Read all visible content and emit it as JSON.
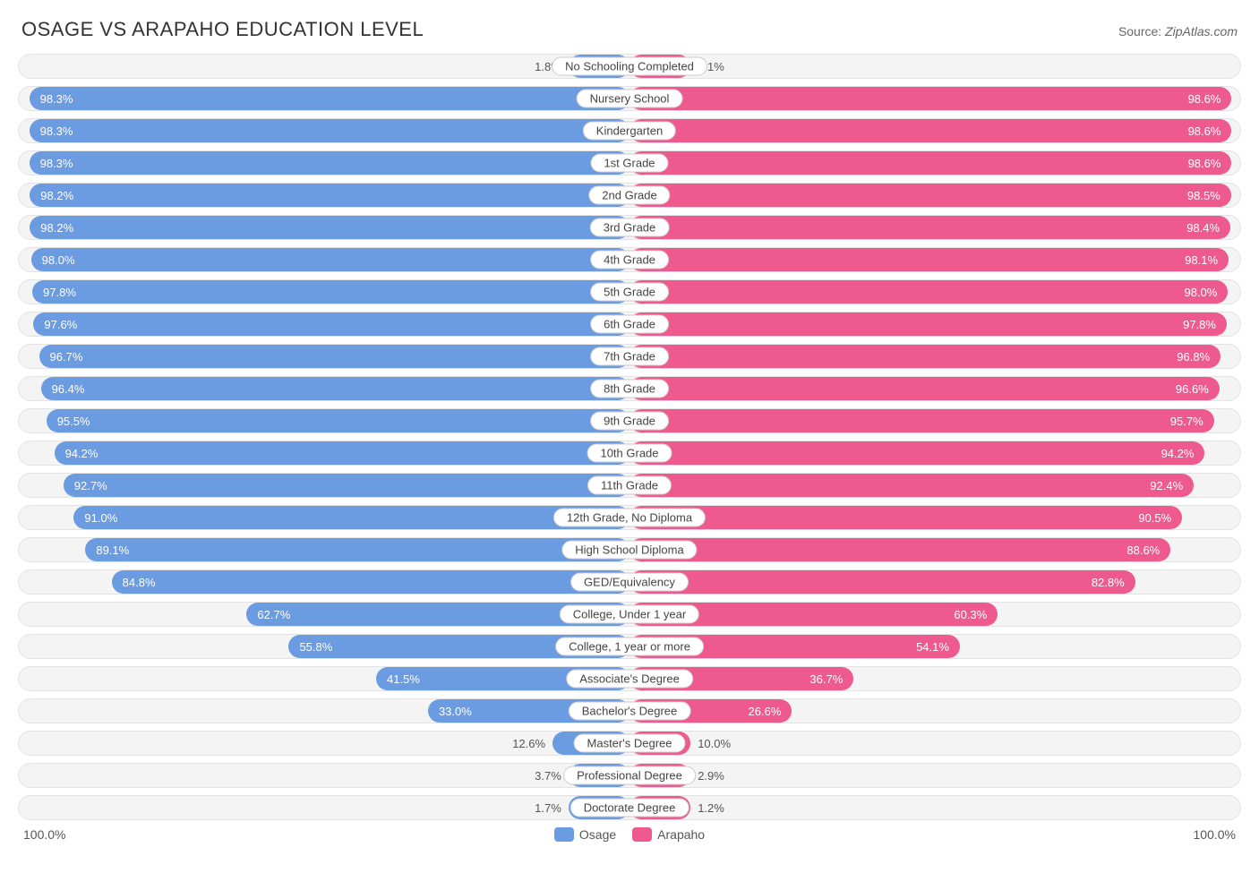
{
  "title": "OSAGE VS ARAPAHO EDUCATION LEVEL",
  "source_label": "Source:",
  "source_value": "ZipAtlas.com",
  "colors": {
    "osage": "#6b9be0",
    "arapaho": "#ef5a8e",
    "row_bg": "#f4f4f4",
    "row_border": "#e3e3e3",
    "text_dark": "#333333",
    "text_mid": "#555555"
  },
  "axis": {
    "left_end": "100.0%",
    "right_end": "100.0%"
  },
  "legend": {
    "osage": "Osage",
    "arapaho": "Arapaho"
  },
  "value_label_inside_threshold": 20,
  "rows": [
    {
      "label": "No Schooling Completed",
      "osage": 1.8,
      "arapaho": 2.1
    },
    {
      "label": "Nursery School",
      "osage": 98.3,
      "arapaho": 98.6
    },
    {
      "label": "Kindergarten",
      "osage": 98.3,
      "arapaho": 98.6
    },
    {
      "label": "1st Grade",
      "osage": 98.3,
      "arapaho": 98.6
    },
    {
      "label": "2nd Grade",
      "osage": 98.2,
      "arapaho": 98.5
    },
    {
      "label": "3rd Grade",
      "osage": 98.2,
      "arapaho": 98.4
    },
    {
      "label": "4th Grade",
      "osage": 98.0,
      "arapaho": 98.1
    },
    {
      "label": "5th Grade",
      "osage": 97.8,
      "arapaho": 98.0
    },
    {
      "label": "6th Grade",
      "osage": 97.6,
      "arapaho": 97.8
    },
    {
      "label": "7th Grade",
      "osage": 96.7,
      "arapaho": 96.8
    },
    {
      "label": "8th Grade",
      "osage": 96.4,
      "arapaho": 96.6
    },
    {
      "label": "9th Grade",
      "osage": 95.5,
      "arapaho": 95.7
    },
    {
      "label": "10th Grade",
      "osage": 94.2,
      "arapaho": 94.2
    },
    {
      "label": "11th Grade",
      "osage": 92.7,
      "arapaho": 92.4
    },
    {
      "label": "12th Grade, No Diploma",
      "osage": 91.0,
      "arapaho": 90.5
    },
    {
      "label": "High School Diploma",
      "osage": 89.1,
      "arapaho": 88.6
    },
    {
      "label": "GED/Equivalency",
      "osage": 84.8,
      "arapaho": 82.8
    },
    {
      "label": "College, Under 1 year",
      "osage": 62.7,
      "arapaho": 60.3
    },
    {
      "label": "College, 1 year or more",
      "osage": 55.8,
      "arapaho": 54.1
    },
    {
      "label": "Associate's Degree",
      "osage": 41.5,
      "arapaho": 36.7
    },
    {
      "label": "Bachelor's Degree",
      "osage": 33.0,
      "arapaho": 26.6
    },
    {
      "label": "Master's Degree",
      "osage": 12.6,
      "arapaho": 10.0
    },
    {
      "label": "Professional Degree",
      "osage": 3.7,
      "arapaho": 2.9
    },
    {
      "label": "Doctorate Degree",
      "osage": 1.7,
      "arapaho": 1.2
    }
  ]
}
